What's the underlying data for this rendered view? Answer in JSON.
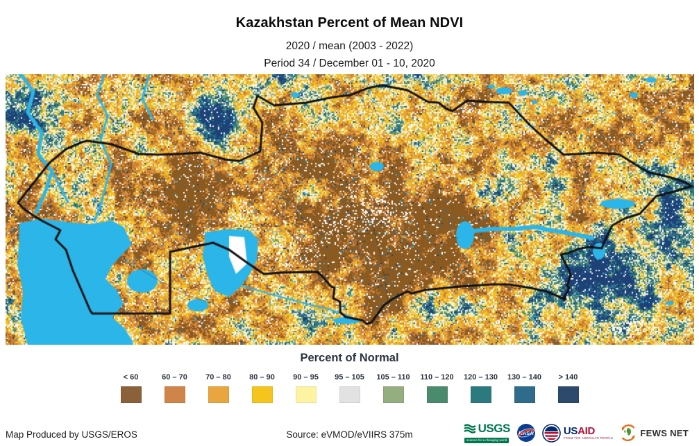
{
  "header": {
    "title": "Kazakhstan Percent of Mean NDVI",
    "subtitle1": "2020 / mean (2003 - 2022)",
    "subtitle2": "Period 34 / December 01 - 10, 2020"
  },
  "legend": {
    "title": "Percent of Normal",
    "items": [
      {
        "label": "< 60",
        "color": "#8a6138"
      },
      {
        "label": "60 – 70",
        "color": "#cf8449"
      },
      {
        "label": "70 – 80",
        "color": "#e9a63e"
      },
      {
        "label": "80 – 90",
        "color": "#f5c51d"
      },
      {
        "label": "90 – 95",
        "color": "#fdf3a3"
      },
      {
        "label": "95 – 105",
        "color": "#e2e2e2"
      },
      {
        "label": "105 – 110",
        "color": "#95ae80"
      },
      {
        "label": "110 – 120",
        "color": "#4a8b6e"
      },
      {
        "label": "120 – 130",
        "color": "#2a7a7f"
      },
      {
        "label": "130 – 140",
        "color": "#2f6c8c"
      },
      {
        "label": "> 140",
        "color": "#2d4a6d"
      }
    ]
  },
  "map": {
    "water_color": "#2cb5e9",
    "border_color": "#111111",
    "palette": [
      "#8a5a20",
      "#c97e38",
      "#e8a33c",
      "#f2c31d",
      "#fcf0a2",
      "#e9e9e4",
      "#93ad7e",
      "#488a6d",
      "#22797c",
      "#2d6da0",
      "#1e4176"
    ]
  },
  "footer": {
    "produced_by": "Map Produced by USGS/EROS",
    "source": "Source: eVMOD/eVIIRS 375m",
    "logos": {
      "usgs": {
        "name": "USGS",
        "tagline": "science for a changing world"
      },
      "nasa": {
        "name": "NASA"
      },
      "usaid": {
        "name_us": "US",
        "name_aid": "AID",
        "tagline": "FROM THE AMERICAN PEOPLE"
      },
      "fewsnet": {
        "name": "FEWS NET"
      }
    }
  }
}
